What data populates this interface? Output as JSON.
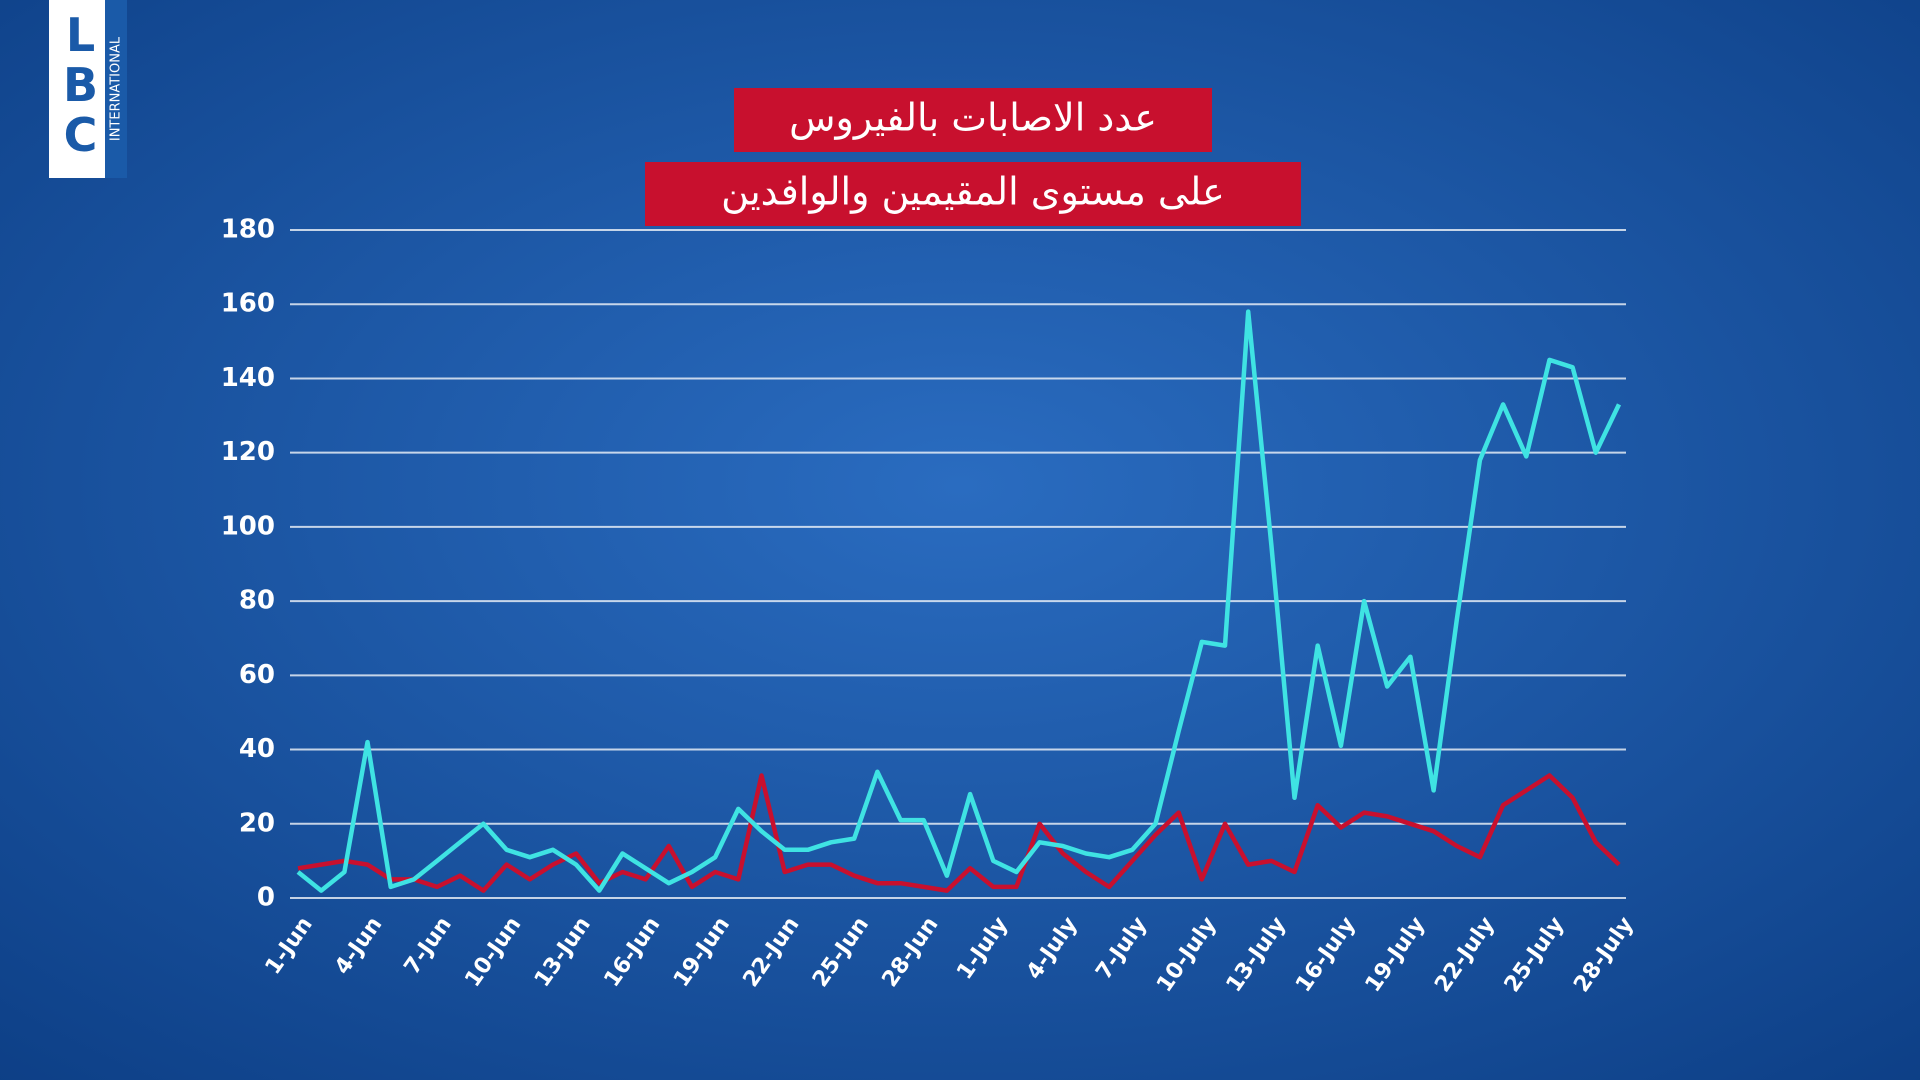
{
  "logo": {
    "text": "LBC",
    "subtext": "INTERNATIONAL"
  },
  "chart_data": {
    "type": "line",
    "title": "عدد الاصابات بالفيروس",
    "subtitle": "على مستوى المقيمين والوافدين",
    "categories": [
      "1-Jun",
      null,
      null,
      "4-Jun",
      null,
      null,
      "7-Jun",
      null,
      null,
      "10-Jun",
      null,
      null,
      "13-Jun",
      null,
      null,
      "16-Jun",
      null,
      null,
      "19-Jun",
      null,
      null,
      "22-Jun",
      null,
      null,
      "25-Jun",
      null,
      null,
      "28-Jun",
      null,
      null,
      "1-July",
      null,
      null,
      "4-July",
      null,
      null,
      "7-July",
      null,
      null,
      "10-July",
      null,
      null,
      "13-July",
      null,
      null,
      "16-July",
      null,
      null,
      "19-July",
      null,
      null,
      "22-July",
      null,
      null,
      "25-July",
      null,
      null,
      "28-July"
    ],
    "series": [
      {
        "color": "#3fe3e3",
        "values": [
          7,
          2,
          7,
          42,
          3,
          5,
          10,
          15,
          20,
          13,
          11,
          13,
          9,
          2,
          12,
          8,
          4,
          7,
          11,
          24,
          18,
          13,
          13,
          15,
          16,
          34,
          21,
          21,
          6,
          28,
          10,
          7,
          15,
          14,
          12,
          11,
          13,
          20,
          45,
          69,
          68,
          158,
          95,
          27,
          68,
          41,
          80,
          57,
          65,
          29,
          75,
          118,
          133,
          119,
          145,
          143,
          120,
          133
        ]
      },
      {
        "color": "#c8102e",
        "values": [
          8,
          9,
          10,
          9,
          5,
          5,
          3,
          6,
          2,
          9,
          5,
          9,
          12,
          4,
          7,
          5,
          14,
          3,
          7,
          5,
          33,
          7,
          9,
          9,
          6,
          4,
          4,
          3,
          2,
          8,
          3,
          3,
          20,
          12,
          7,
          3,
          10,
          17,
          23,
          5,
          20,
          9,
          10,
          7,
          25,
          19,
          23,
          22,
          20,
          18,
          14,
          11,
          25,
          29,
          33,
          27,
          15,
          9
        ]
      }
    ],
    "ylim": [
      0,
      180
    ],
    "yticks": [
      0,
      20,
      40,
      60,
      80,
      100,
      120,
      140,
      160,
      180
    ],
    "grid": true
  }
}
